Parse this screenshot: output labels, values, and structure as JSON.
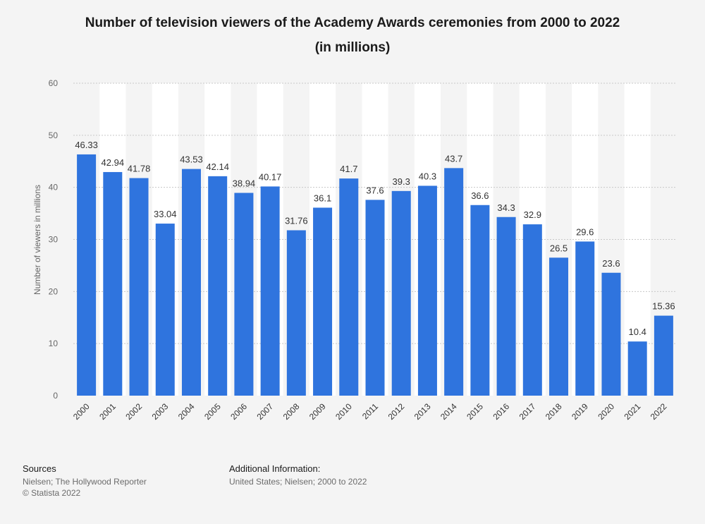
{
  "title_line_1": "Number of television viewers of the Academy Awards ceremonies from 2000 to 2022",
  "title_line_2": "(in millions)",
  "footer": {
    "sources_heading": "Sources",
    "sources_text": "Nielsen; The Hollywood Reporter",
    "copyright": "© Statista 2022",
    "additional_heading": "Additional Information:",
    "additional_text": "United States; Nielsen; 2000 to 2022"
  },
  "colors": {
    "bar": "#2f74de",
    "band": "#ffffff",
    "grid": "#c8c8c8",
    "axis_text": "#666666",
    "label_text": "#333333"
  },
  "chart_data": {
    "type": "bar",
    "categories": [
      "2000",
      "2001",
      "2002",
      "2003",
      "2004",
      "2005",
      "2006",
      "2007",
      "2008",
      "2009",
      "2010",
      "2011",
      "2012",
      "2013",
      "2014",
      "2015",
      "2016",
      "2017",
      "2018",
      "2019",
      "2020",
      "2021",
      "2022"
    ],
    "values": [
      46.33,
      42.94,
      41.78,
      33.04,
      43.53,
      42.14,
      38.94,
      40.17,
      31.76,
      36.1,
      41.7,
      37.6,
      39.3,
      40.3,
      43.7,
      36.6,
      34.3,
      32.9,
      26.5,
      29.6,
      23.6,
      10.4,
      15.36
    ],
    "value_labels": [
      "46.33",
      "42.94",
      "41.78",
      "33.04",
      "43.53",
      "42.14",
      "38.94",
      "40.17",
      "31.76",
      "36.1",
      "41.7",
      "37.6",
      "39.3",
      "40.3",
      "43.7",
      "36.6",
      "34.3",
      "32.9",
      "26.5",
      "29.6",
      "23.6",
      "10.4",
      "15.36"
    ],
    "ylabel": "Number of viewers in millions",
    "xlabel": "",
    "ylim": [
      0,
      60
    ],
    "yticks": [
      "0",
      "10",
      "20",
      "30",
      "40",
      "50",
      "60"
    ],
    "grid": true,
    "legend": "none"
  }
}
